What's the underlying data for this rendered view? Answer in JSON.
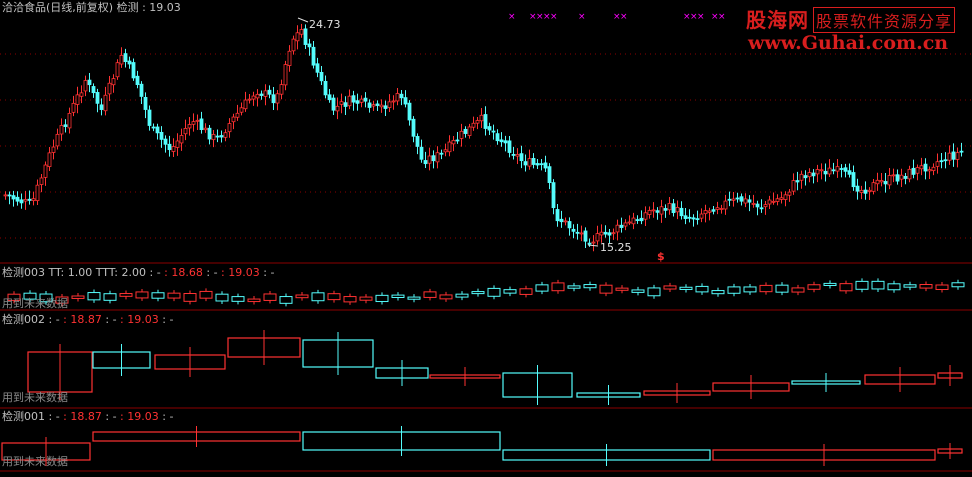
{
  "header": {
    "stock_name": "洽洽食品(日线,前复权)",
    "indicator": "检测",
    "value": ": 19.03"
  },
  "main_chart": {
    "high_label": "24.73",
    "low_label": "15.25",
    "dollar_marker": "$"
  },
  "panel1": {
    "title": "检测003",
    "tt": "TT: 1.00",
    "ttt": "TTT: 2.00",
    "seg1": ": -",
    "v1": ": 18.68",
    "seg2": ": -",
    "v2": ": 19.03",
    "seg3": ": -",
    "note": "用到未来数据"
  },
  "panel2": {
    "title": "检测002",
    "seg1": ": -",
    "v1": ": 18.87",
    "seg2": ": -",
    "v2": ": 19.03",
    "seg3": ": -",
    "note": "用到未来数据"
  },
  "panel3": {
    "title": "检测001",
    "seg1": ": -",
    "v1": ": 18.87",
    "seg2": ": -",
    "v2": ": 19.03",
    "seg3": ": -",
    "note": "用到未来数据"
  },
  "watermark": {
    "brand": "股海网",
    "slogan": "股票软件资源分享",
    "url": "www.Guhai.com.cn"
  },
  "colors": {
    "up": "#ff3232",
    "down": "#54fcfc",
    "text": "#c0c0c0",
    "grid": "#8b0000",
    "marker": "#ff00ff",
    "brand": "#d81e1e"
  }
}
